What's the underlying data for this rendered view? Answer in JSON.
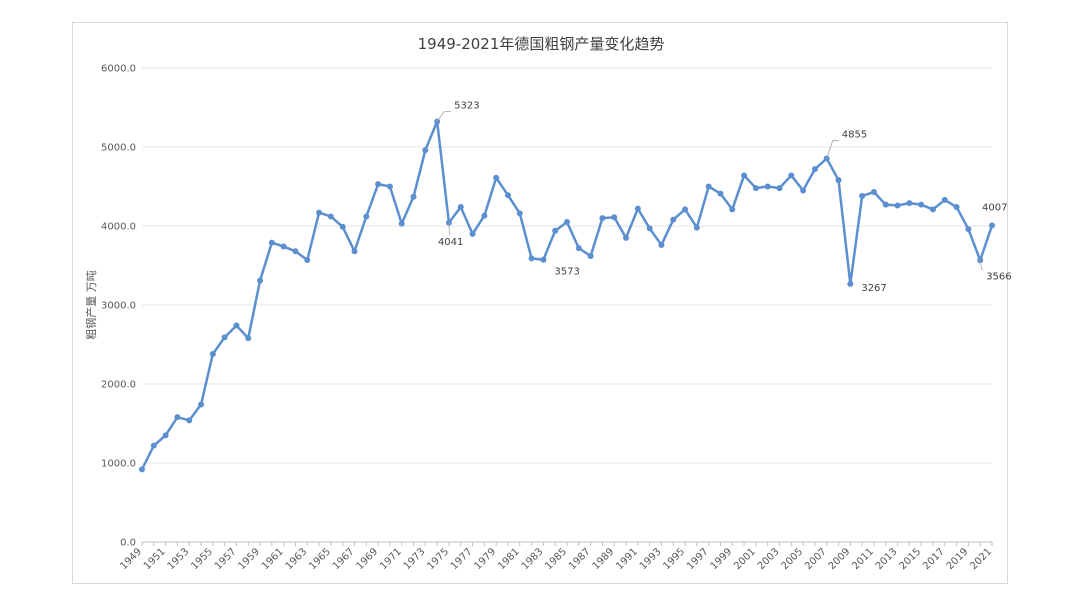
{
  "chart_data": {
    "type": "line",
    "title": "1949-2021年德国粗钢产量变化趋势",
    "xlabel": "",
    "ylabel": "粗钢产量  万吨",
    "ylim": [
      0,
      6000
    ],
    "yticks": [
      "0.0",
      "1000.0",
      "2000.0",
      "3000.0",
      "4000.0",
      "5000.0",
      "6000.0"
    ],
    "grid": true,
    "legend": "none",
    "line_color": "#5b8fd0",
    "x": [
      1949,
      1950,
      1951,
      1952,
      1953,
      1954,
      1955,
      1956,
      1957,
      1958,
      1959,
      1960,
      1961,
      1962,
      1963,
      1964,
      1965,
      1966,
      1967,
      1968,
      1969,
      1970,
      1971,
      1972,
      1973,
      1974,
      1975,
      1976,
      1977,
      1978,
      1979,
      1980,
      1981,
      1982,
      1983,
      1984,
      1985,
      1986,
      1987,
      1988,
      1989,
      1990,
      1991,
      1992,
      1993,
      1994,
      1995,
      1996,
      1997,
      1998,
      1999,
      2000,
      2001,
      2002,
      2003,
      2004,
      2005,
      2006,
      2007,
      2008,
      2009,
      2010,
      2011,
      2012,
      2013,
      2014,
      2015,
      2016,
      2017,
      2018,
      2019,
      2020,
      2021
    ],
    "xticks": [
      "1949",
      "1951",
      "1953",
      "1955",
      "1957",
      "1959",
      "1961",
      "1963",
      "1965",
      "1967",
      "1969",
      "1971",
      "1973",
      "1975",
      "1977",
      "1979",
      "1981",
      "1983",
      "1985",
      "1987",
      "1989",
      "1991",
      "1993",
      "1995",
      "1997",
      "1999",
      "2001",
      "2003",
      "2005",
      "2007",
      "2009",
      "2011",
      "2013",
      "2015",
      "2017",
      "2019",
      "2021"
    ],
    "series": [
      {
        "values": [
          920,
          1220,
          1350,
          1580,
          1540,
          1740,
          2380,
          2590,
          2740,
          2580,
          3310,
          3790,
          3740,
          3680,
          3570,
          4170,
          4120,
          3990,
          3680,
          4120,
          4530,
          4500,
          4030,
          4370,
          4960,
          5323,
          4041,
          4240,
          3900,
          4130,
          4610,
          4390,
          4160,
          3590,
          3573,
          3940,
          4050,
          3720,
          3620,
          4100,
          4110,
          3850,
          4220,
          3970,
          3760,
          4080,
          4210,
          3980,
          4500,
          4410,
          4210,
          4640,
          4480,
          4500,
          4480,
          4640,
          4450,
          4720,
          4855,
          4580,
          3267,
          4380,
          4430,
          4270,
          4260,
          4290,
          4270,
          4210,
          4330,
          4240,
          3960,
          3566,
          4007
        ]
      }
    ],
    "annotations": [
      {
        "x": 1974,
        "value": 5323,
        "text": "5323"
      },
      {
        "x": 1975,
        "value": 4041,
        "text": "4041"
      },
      {
        "x": 1983,
        "value": 3573,
        "text": "3573"
      },
      {
        "x": 2007,
        "value": 4855,
        "text": "4855"
      },
      {
        "x": 2009,
        "value": 3267,
        "text": "3267"
      },
      {
        "x": 2020,
        "value": 3566,
        "text": "3566"
      },
      {
        "x": 2021,
        "value": 4007,
        "text": "4007"
      }
    ]
  }
}
